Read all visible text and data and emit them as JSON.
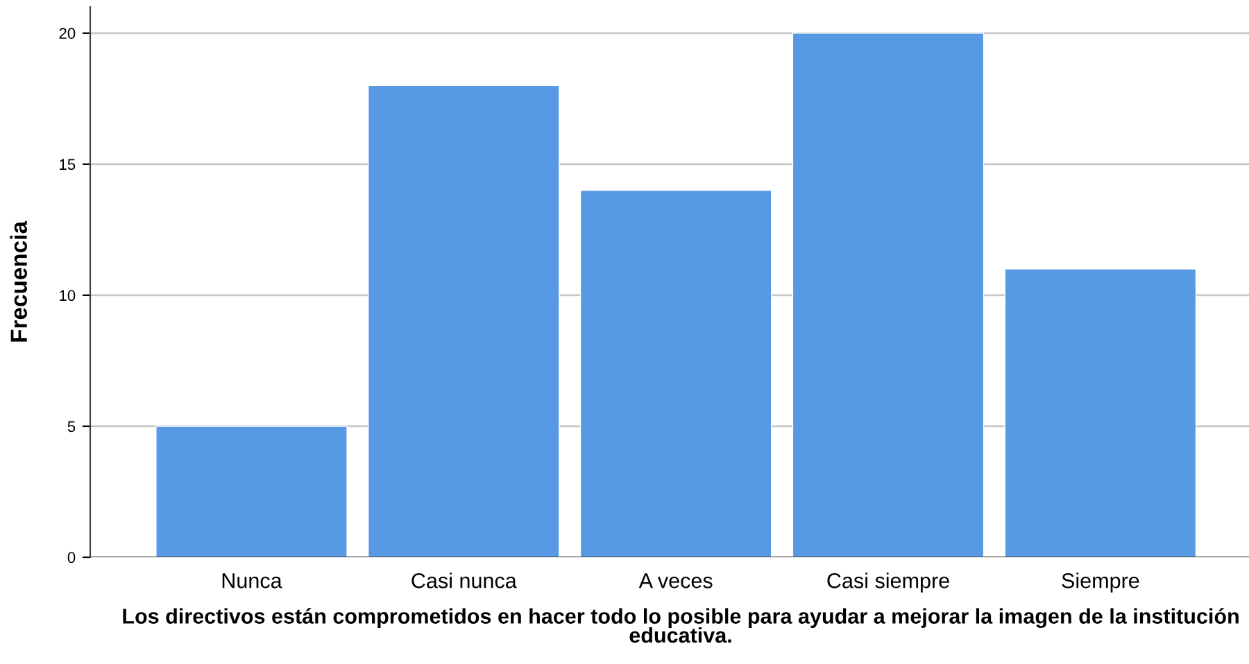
{
  "chart_data": {
    "type": "bar",
    "xlabel": "Los directivos están comprometidos en hacer todo lo posible para ayudar a mejorar la imagen de la institución educativa.",
    "ylabel": "Frecuencia",
    "categories": [
      "Nunca",
      "Casi nunca",
      "A veces",
      "Casi siempre",
      "Siempre"
    ],
    "values": [
      5,
      18,
      14,
      20,
      11
    ],
    "color": "#5899e3",
    "ylim": [
      0,
      21
    ],
    "yticks": [
      0,
      5,
      10,
      15,
      20
    ],
    "grid": "y"
  }
}
